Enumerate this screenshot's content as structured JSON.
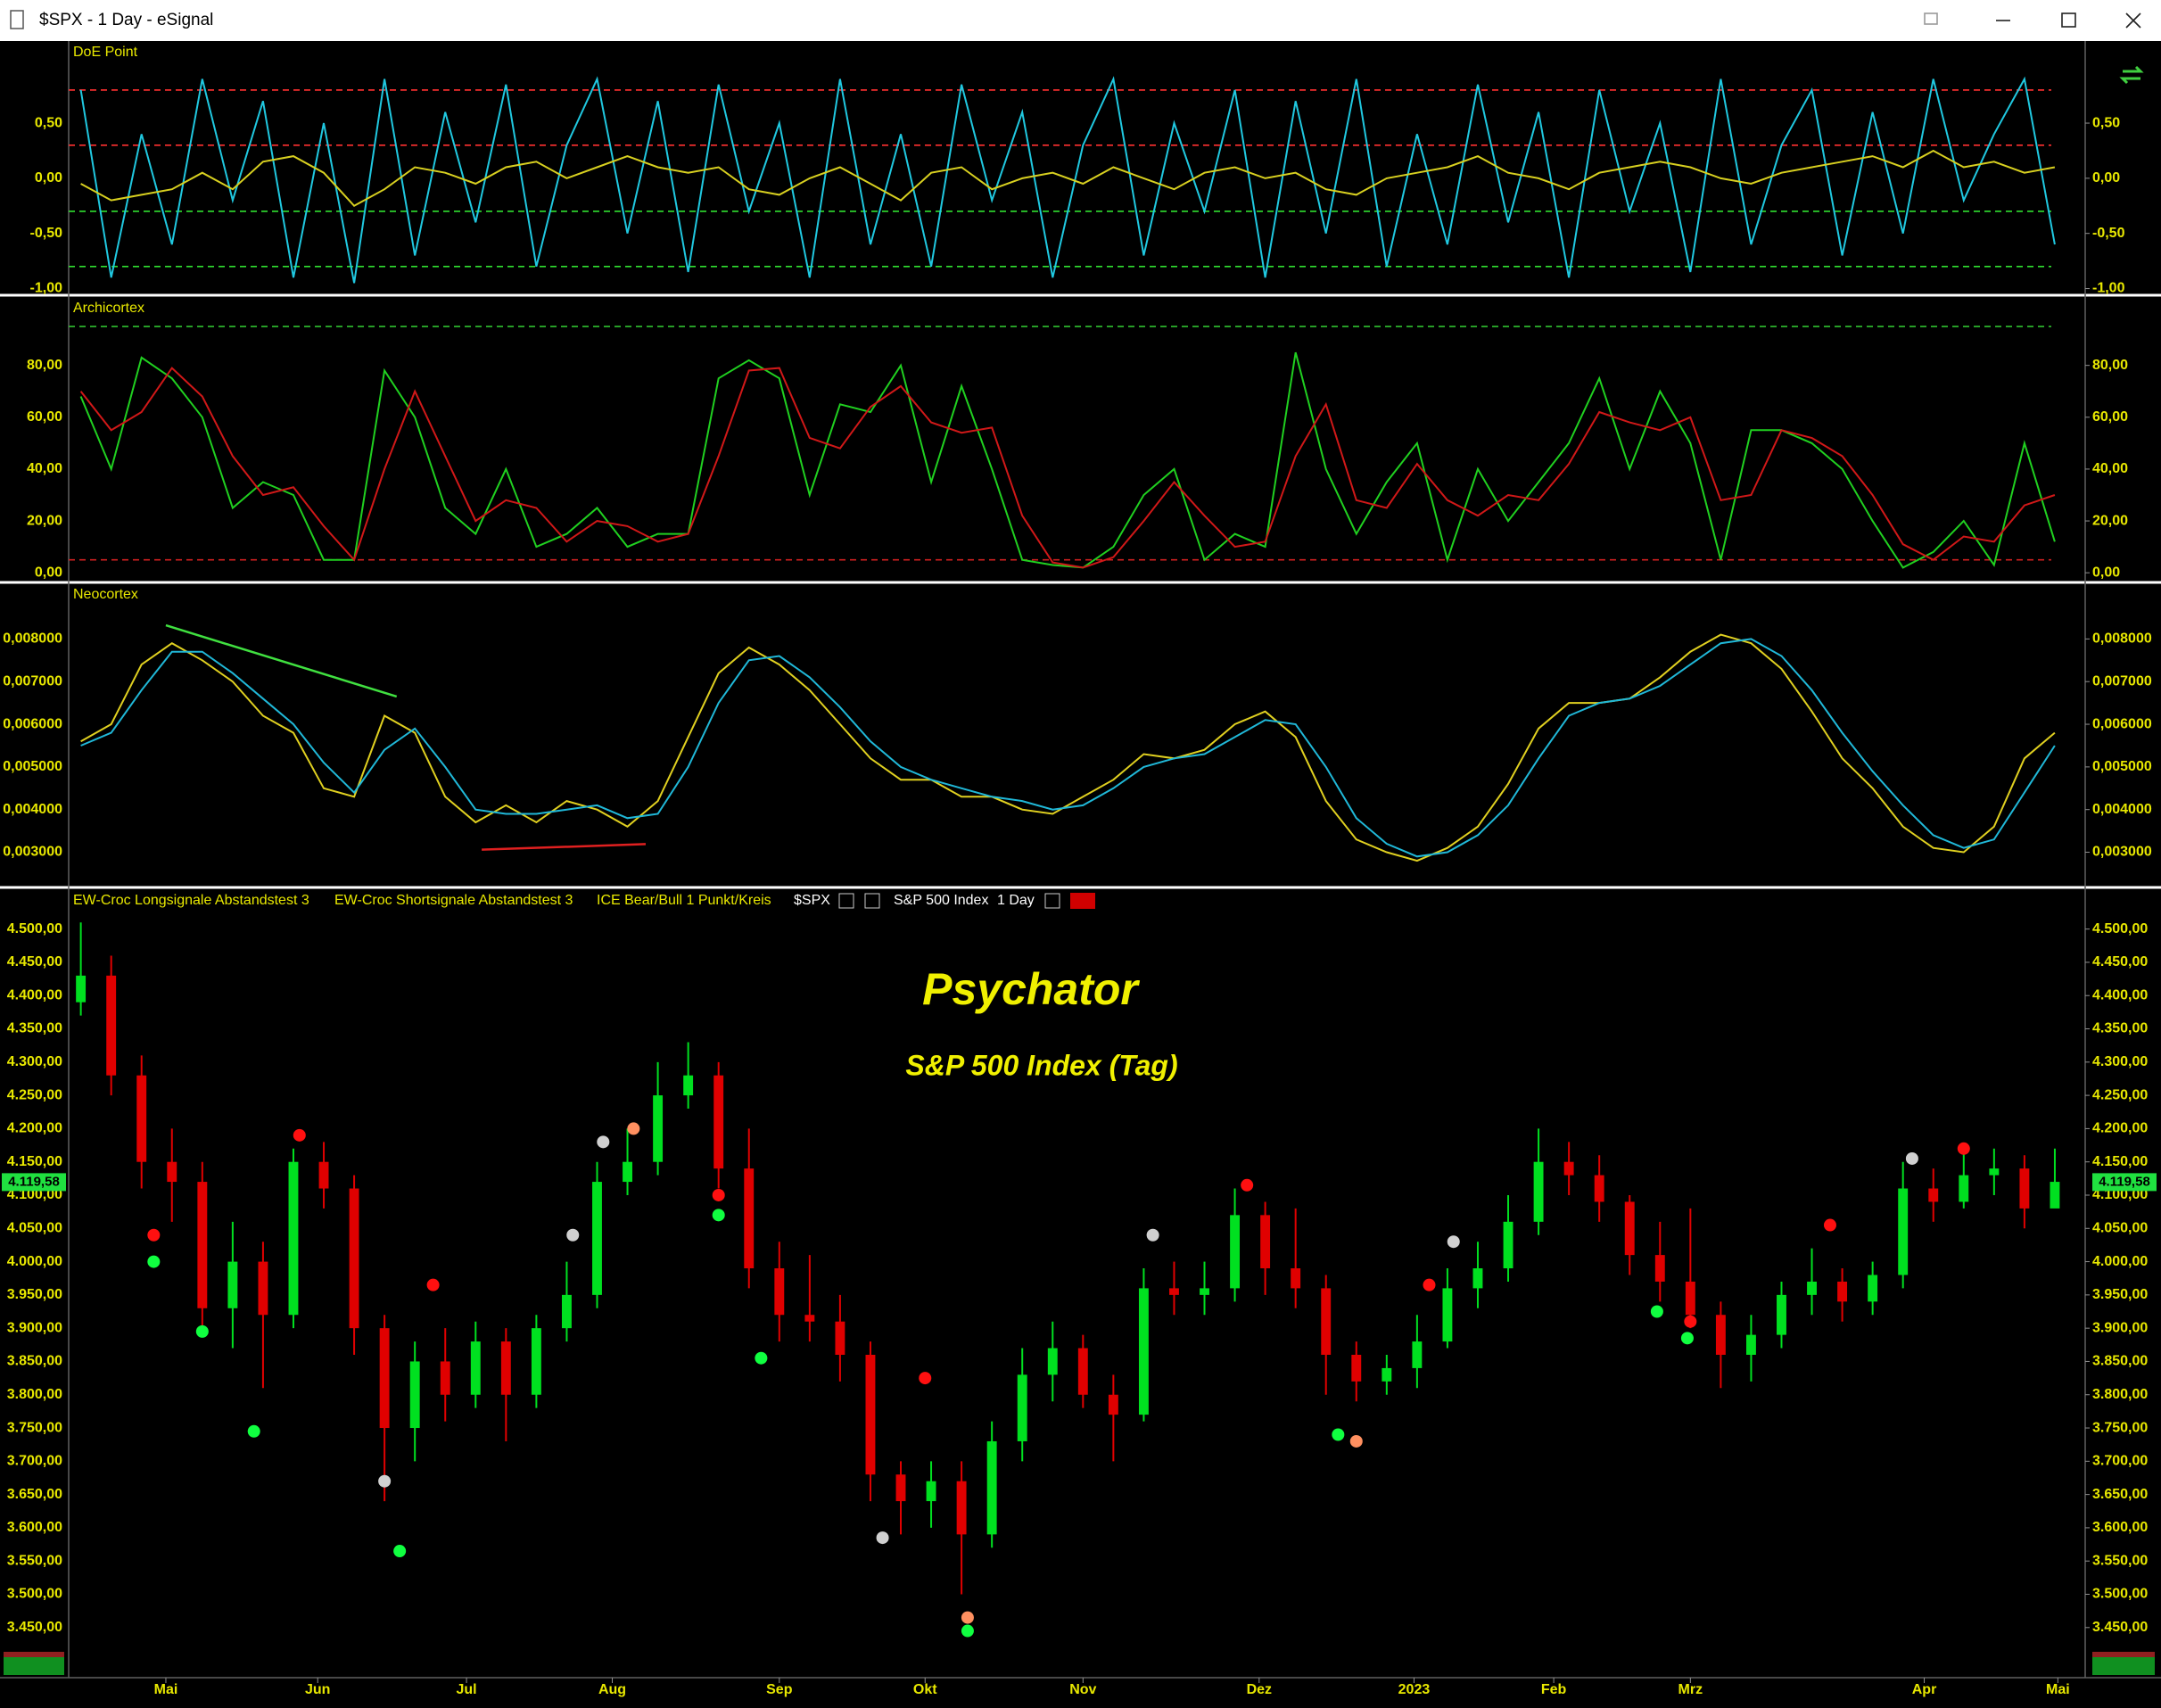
{
  "window": {
    "title": "$SPX - 1 Day - eSignal"
  },
  "chart_data": [
    {
      "type": "line",
      "title": "DoE Point",
      "ylim": [
        -1.02,
        1.22
      ],
      "yticks": [
        {
          "value": -1,
          "label": "-1,00"
        },
        {
          "value": -0.5,
          "label": "-0,50"
        },
        {
          "value": 0,
          "label": "0,00"
        },
        {
          "value": 0.5,
          "label": "0,50"
        }
      ],
      "levels": [
        {
          "value": 0.8,
          "color": "#ff3030"
        },
        {
          "value": 0.3,
          "color": "#ff3030"
        },
        {
          "value": -0.3,
          "color": "#30e030"
        },
        {
          "value": -0.8,
          "color": "#30e030"
        }
      ],
      "series": [
        {
          "color": "#20c8e0",
          "values": [
            0.8,
            -0.9,
            0.4,
            -0.6,
            0.9,
            -0.2,
            0.7,
            -0.9,
            0.5,
            -0.95,
            0.9,
            -0.7,
            0.6,
            -0.4,
            0.85,
            -0.8,
            0.3,
            0.9,
            -0.5,
            0.7,
            -0.85,
            0.85,
            -0.3,
            0.5,
            -0.9,
            0.9,
            -0.6,
            0.4,
            -0.8,
            0.85,
            -0.2,
            0.6,
            -0.9,
            0.3,
            0.9,
            -0.7,
            0.5,
            -0.3,
            0.8,
            -0.9,
            0.7,
            -0.5,
            0.9,
            -0.8,
            0.4,
            -0.6,
            0.85,
            -0.4,
            0.6,
            -0.9,
            0.8,
            -0.3,
            0.5,
            -0.85,
            0.9,
            -0.6,
            0.3,
            0.8,
            -0.7,
            0.6,
            -0.5,
            0.9,
            -0.2,
            0.4,
            0.9,
            -0.6
          ]
        },
        {
          "color": "#d8d020",
          "values": [
            -0.05,
            -0.2,
            -0.15,
            -0.1,
            0.05,
            -0.1,
            0.15,
            0.2,
            0.05,
            -0.25,
            -0.1,
            0.1,
            0.05,
            -0.05,
            0.1,
            0.15,
            0,
            0.1,
            0.2,
            0.1,
            0.05,
            0.1,
            -0.1,
            -0.15,
            0,
            0.1,
            -0.05,
            -0.2,
            0.05,
            0.1,
            -0.1,
            0,
            0.05,
            -0.05,
            0.1,
            0,
            -0.1,
            0.05,
            0.1,
            0,
            0.05,
            -0.1,
            -0.15,
            0,
            0.05,
            0.1,
            0.2,
            0.05,
            0,
            -0.1,
            0.05,
            0.1,
            0.15,
            0.1,
            0,
            -0.05,
            0.05,
            0.1,
            0.15,
            0.2,
            0.1,
            0.25,
            0.1,
            0.15,
            0.05,
            0.1
          ]
        }
      ]
    },
    {
      "type": "line",
      "title": "Archicortex",
      "ylim": [
        -2,
        105
      ],
      "yticks": [
        {
          "value": 0,
          "label": "0,00"
        },
        {
          "value": 20,
          "label": "20,00"
        },
        {
          "value": 40,
          "label": "40,00"
        },
        {
          "value": 60,
          "label": "60,00"
        },
        {
          "value": 80,
          "label": "80,00"
        }
      ],
      "levels": [
        {
          "value": 95,
          "color": "#30c030"
        },
        {
          "value": 5,
          "color": "#d02020"
        }
      ],
      "series": [
        {
          "color": "#20d020",
          "values": [
            68,
            40,
            83,
            75,
            60,
            25,
            35,
            30,
            5,
            5,
            78,
            60,
            25,
            15,
            40,
            10,
            15,
            25,
            10,
            15,
            15,
            75,
            82,
            75,
            30,
            65,
            62,
            80,
            35,
            72,
            40,
            5,
            3,
            2,
            10,
            30,
            40,
            5,
            15,
            10,
            85,
            40,
            15,
            35,
            50,
            5,
            40,
            20,
            35,
            50,
            75,
            40,
            70,
            50,
            5,
            55,
            55,
            50,
            40,
            20,
            2,
            8,
            20,
            3,
            50,
            12
          ]
        },
        {
          "color": "#d01818",
          "values": [
            70,
            55,
            62,
            79,
            68,
            45,
            30,
            33,
            18,
            5,
            40,
            70,
            45,
            20,
            28,
            25,
            12,
            20,
            18,
            12,
            15,
            45,
            78,
            79,
            52,
            48,
            64,
            72,
            58,
            54,
            56,
            22,
            4,
            2,
            6,
            20,
            35,
            22,
            10,
            12,
            45,
            65,
            28,
            25,
            42,
            28,
            22,
            30,
            28,
            42,
            62,
            58,
            55,
            60,
            28,
            30,
            55,
            52,
            45,
            30,
            11,
            5,
            14,
            12,
            26,
            30
          ]
        }
      ]
    },
    {
      "type": "line",
      "title": "Neocortex",
      "ylim": [
        0.0023,
        0.0092
      ],
      "yticks": [
        {
          "value": 0.003,
          "label": "0,003000"
        },
        {
          "value": 0.004,
          "label": "0,004000"
        },
        {
          "value": 0.005,
          "label": "0,005000"
        },
        {
          "value": 0.006,
          "label": "0,006000"
        },
        {
          "value": 0.007,
          "label": "0,007000"
        },
        {
          "value": 0.008,
          "label": "0,008000"
        }
      ],
      "series": [
        {
          "color": "#e0d020",
          "values": [
            0.0056,
            0.006,
            0.0074,
            0.0079,
            0.0075,
            0.007,
            0.0062,
            0.0058,
            0.0045,
            0.0043,
            0.0062,
            0.0058,
            0.0043,
            0.0037,
            0.0041,
            0.0037,
            0.0042,
            0.004,
            0.0036,
            0.0042,
            0.0057,
            0.0072,
            0.0078,
            0.0074,
            0.0068,
            0.006,
            0.0052,
            0.0047,
            0.0047,
            0.0043,
            0.0043,
            0.004,
            0.0039,
            0.0043,
            0.0047,
            0.0053,
            0.0052,
            0.0054,
            0.006,
            0.0063,
            0.0057,
            0.0042,
            0.0033,
            0.003,
            0.0028,
            0.0031,
            0.0036,
            0.0046,
            0.0059,
            0.0065,
            0.0065,
            0.0066,
            0.0071,
            0.0077,
            0.0081,
            0.0079,
            0.0073,
            0.0063,
            0.0052,
            0.0045,
            0.0036,
            0.0031,
            0.003,
            0.0036,
            0.0052,
            0.0058
          ]
        },
        {
          "color": "#20b8d8",
          "values": [
            0.0055,
            0.0058,
            0.0068,
            0.0077,
            0.0077,
            0.0072,
            0.0066,
            0.006,
            0.0051,
            0.0044,
            0.0054,
            0.0059,
            0.005,
            0.004,
            0.0039,
            0.0039,
            0.004,
            0.0041,
            0.0038,
            0.0039,
            0.005,
            0.0065,
            0.0075,
            0.0076,
            0.0071,
            0.0064,
            0.0056,
            0.005,
            0.0047,
            0.0045,
            0.0043,
            0.0042,
            0.004,
            0.0041,
            0.0045,
            0.005,
            0.0052,
            0.0053,
            0.0057,
            0.0061,
            0.006,
            0.005,
            0.0038,
            0.0032,
            0.0029,
            0.003,
            0.0034,
            0.0041,
            0.0052,
            0.0062,
            0.0065,
            0.0066,
            0.0069,
            0.0074,
            0.0079,
            0.008,
            0.0076,
            0.0068,
            0.0058,
            0.0049,
            0.0041,
            0.0034,
            0.0031,
            0.0033,
            0.0044,
            0.0055
          ]
        }
      ],
      "trendlines": [
        {
          "x": [
            2.8,
            10.4
          ],
          "y": [
            0.00832,
            0.00665
          ],
          "color": "#40e040"
        },
        {
          "x": [
            13.2,
            18.6
          ],
          "y": [
            0.00306,
            0.00319
          ],
          "color": "#e02020"
        }
      ]
    },
    {
      "type": "candlestick",
      "title": "Psychator",
      "subtitle": "S&P 500 Index (Tag)",
      "legend": [
        "EW-Croc Longsignale Abstandstest 3",
        "EW-Croc Shortsignale Abstandstest 3",
        "ICE Bear/Bull 1 Punkt/Kreis"
      ],
      "symbol": "$SPX",
      "name": "S&P 500 Index",
      "interval": "1 Day",
      "up_color": "#00e020",
      "down_color": "#e00000",
      "xlim": [
        -0.4,
        66
      ],
      "xticks": [
        {
          "value": 2.8,
          "label": "Mai"
        },
        {
          "value": 7.8,
          "label": "Jun"
        },
        {
          "value": 12.7,
          "label": "Jul"
        },
        {
          "value": 17.5,
          "label": "Aug"
        },
        {
          "value": 23.0,
          "label": "Sep"
        },
        {
          "value": 27.8,
          "label": "Okt"
        },
        {
          "value": 33.0,
          "label": "Nov"
        },
        {
          "value": 38.8,
          "label": "Dez"
        },
        {
          "value": 43.9,
          "label": "2023"
        },
        {
          "value": 48.5,
          "label": "Feb"
        },
        {
          "value": 53.0,
          "label": "Mrz"
        },
        {
          "value": 60.7,
          "label": "Apr"
        },
        {
          "value": 65.1,
          "label": "Mai"
        }
      ],
      "ylim": [
        3380,
        4525
      ],
      "yticks": [
        {
          "value": 3450,
          "label": "3.450,00"
        },
        {
          "value": 3500,
          "label": "3.500,00"
        },
        {
          "value": 3550,
          "label": "3.550,00"
        },
        {
          "value": 3600,
          "label": "3.600,00"
        },
        {
          "value": 3650,
          "label": "3.650,00"
        },
        {
          "value": 3700,
          "label": "3.700,00"
        },
        {
          "value": 3750,
          "label": "3.750,00"
        },
        {
          "value": 3800,
          "label": "3.800,00"
        },
        {
          "value": 3850,
          "label": "3.850,00"
        },
        {
          "value": 3900,
          "label": "3.900,00"
        },
        {
          "value": 3950,
          "label": "3.950,00"
        },
        {
          "value": 4000,
          "label": "4.000,00"
        },
        {
          "value": 4050,
          "label": "4.050,00"
        },
        {
          "value": 4100,
          "label": "4.100,00"
        },
        {
          "value": 4150,
          "label": "4.150,00"
        },
        {
          "value": 4200,
          "label": "4.200,00"
        },
        {
          "value": 4250,
          "label": "4.250,00"
        },
        {
          "value": 4300,
          "label": "4.300,00"
        },
        {
          "value": 4350,
          "label": "4.350,00"
        },
        {
          "value": 4400,
          "label": "4.400,00"
        },
        {
          "value": 4450,
          "label": "4.450,00"
        },
        {
          "value": 4500,
          "label": "4.500,00"
        }
      ],
      "last_price": {
        "value": 4119.58,
        "label": "4.119,58"
      },
      "open": [
        4390,
        4430,
        4280,
        4150,
        4120,
        3930,
        4000,
        3920,
        4150,
        4110,
        3900,
        3750,
        3850,
        3800,
        3880,
        3800,
        3900,
        3950,
        4120,
        4150,
        4250,
        4280,
        4140,
        3990,
        3920,
        3910,
        3860,
        3680,
        3640,
        3670,
        3590,
        3730,
        3830,
        3870,
        3800,
        3770,
        3960,
        3950,
        3960,
        4070,
        3990,
        3960,
        3860,
        3820,
        3840,
        3880,
        3960,
        3990,
        4060,
        4150,
        4130,
        4090,
        4010,
        3970,
        3920,
        3860,
        3890,
        3950,
        3970,
        3940,
        3980,
        4110,
        4090,
        4130,
        4140,
        4080
      ],
      "high": [
        4510,
        4460,
        4310,
        4200,
        4150,
        4060,
        4030,
        4170,
        4180,
        4130,
        3920,
        3880,
        3900,
        3910,
        3900,
        3920,
        4000,
        4150,
        4200,
        4300,
        4330,
        4300,
        4200,
        4030,
        4010,
        3950,
        3880,
        3700,
        3700,
        3700,
        3760,
        3870,
        3910,
        3890,
        3830,
        3990,
        4000,
        4000,
        4110,
        4090,
        4080,
        3980,
        3880,
        3860,
        3920,
        3990,
        4030,
        4100,
        4200,
        4180,
        4160,
        4100,
        4060,
        4080,
        3940,
        3920,
        3970,
        4020,
        3990,
        4000,
        4150,
        4140,
        4170,
        4170,
        4160,
        4170
      ],
      "low": [
        4370,
        4250,
        4110,
        4060,
        3890,
        3870,
        3810,
        3900,
        4080,
        3860,
        3640,
        3700,
        3760,
        3780,
        3730,
        3780,
        3880,
        3930,
        4100,
        4130,
        4230,
        4110,
        3960,
        3880,
        3880,
        3820,
        3640,
        3590,
        3600,
        3500,
        3570,
        3700,
        3790,
        3780,
        3700,
        3760,
        3920,
        3920,
        3940,
        3950,
        3930,
        3800,
        3790,
        3800,
        3810,
        3870,
        3930,
        3970,
        4040,
        4100,
        4060,
        3980,
        3940,
        3900,
        3810,
        3820,
        3870,
        3920,
        3910,
        3920,
        3960,
        4060,
        4080,
        4100,
        4050,
        4090
      ],
      "close": [
        4430,
        4280,
        4150,
        4120,
        3930,
        4000,
        3920,
        4150,
        4110,
        3900,
        3750,
        3850,
        3800,
        3880,
        3800,
        3900,
        3950,
        4120,
        4150,
        4250,
        4280,
        4140,
        3990,
        3920,
        3910,
        3860,
        3680,
        3640,
        3670,
        3590,
        3730,
        3830,
        3870,
        3800,
        3770,
        3960,
        3950,
        3960,
        4070,
        3990,
        3960,
        3860,
        3820,
        3840,
        3880,
        3960,
        3990,
        4060,
        4150,
        4130,
        4090,
        4010,
        3970,
        3920,
        3860,
        3890,
        3950,
        3970,
        3940,
        3980,
        4110,
        4090,
        4130,
        4140,
        4080,
        4120
      ],
      "signals": [
        {
          "x": 2.4,
          "y": 4040,
          "color": "#ff1010"
        },
        {
          "x": 2.4,
          "y": 4000,
          "color": "#10ff40"
        },
        {
          "x": 4.0,
          "y": 3895,
          "color": "#10ff40"
        },
        {
          "x": 5.7,
          "y": 3745,
          "color": "#10ff40"
        },
        {
          "x": 7.2,
          "y": 4190,
          "color": "#ff1010"
        },
        {
          "x": 10.0,
          "y": 3670,
          "color": "#d0d0d0"
        },
        {
          "x": 10.5,
          "y": 3565,
          "color": "#10ff40"
        },
        {
          "x": 11.6,
          "y": 3965,
          "color": "#ff1010"
        },
        {
          "x": 16.2,
          "y": 4040,
          "color": "#d0d0d0"
        },
        {
          "x": 17.2,
          "y": 4180,
          "color": "#d0d0d0"
        },
        {
          "x": 18.2,
          "y": 4200,
          "color": "#ff9060"
        },
        {
          "x": 21.0,
          "y": 4100,
          "color": "#ff1010"
        },
        {
          "x": 21.0,
          "y": 4070,
          "color": "#10ff40"
        },
        {
          "x": 22.4,
          "y": 3855,
          "color": "#10ff40"
        },
        {
          "x": 26.4,
          "y": 3585,
          "color": "#d0d0d0"
        },
        {
          "x": 27.8,
          "y": 3825,
          "color": "#ff1010"
        },
        {
          "x": 29.2,
          "y": 3445,
          "color": "#10ff40"
        },
        {
          "x": 29.2,
          "y": 3465,
          "color": "#ff9060"
        },
        {
          "x": 35.3,
          "y": 4040,
          "color": "#d0d0d0"
        },
        {
          "x": 38.4,
          "y": 4115,
          "color": "#ff1010"
        },
        {
          "x": 41.4,
          "y": 3740,
          "color": "#10ff40"
        },
        {
          "x": 42.0,
          "y": 3730,
          "color": "#ff9060"
        },
        {
          "x": 44.4,
          "y": 3965,
          "color": "#ff1010"
        },
        {
          "x": 45.2,
          "y": 4030,
          "color": "#d0d0d0"
        },
        {
          "x": 51.9,
          "y": 3925,
          "color": "#10ff40"
        },
        {
          "x": 52.9,
          "y": 3885,
          "color": "#10ff40"
        },
        {
          "x": 53.0,
          "y": 3910,
          "color": "#ff1010"
        },
        {
          "x": 57.6,
          "y": 4055,
          "color": "#ff1010"
        },
        {
          "x": 60.3,
          "y": 4155,
          "color": "#d0d0d0"
        },
        {
          "x": 62.0,
          "y": 4170,
          "color": "#ff1010"
        }
      ]
    }
  ]
}
